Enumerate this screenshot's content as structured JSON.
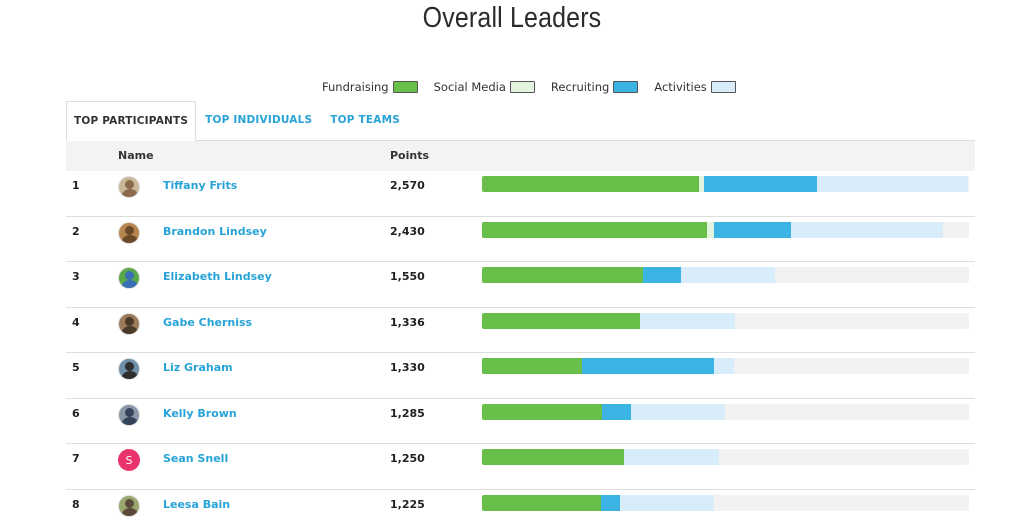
{
  "page": {
    "title": "Overall Leaders"
  },
  "legend": [
    {
      "label": "Fundraising",
      "color": "#6abf4b"
    },
    {
      "label": "Social Media",
      "color": "#e2f3de"
    },
    {
      "label": "Recruiting",
      "color": "#3bb4e3"
    },
    {
      "label": "Activities",
      "color": "#d8ecfa"
    }
  ],
  "tabs": [
    {
      "label": "TOP PARTICIPANTS",
      "active": true
    },
    {
      "label": "TOP INDIVIDUALS",
      "active": false
    },
    {
      "label": "TOP TEAMS",
      "active": false
    }
  ],
  "table": {
    "headers": {
      "name": "Name",
      "points": "Points"
    },
    "rows": [
      {
        "rank": "1",
        "name": "Tiffany Frits",
        "points": "2,570",
        "avatar": "photo",
        "bar": {
          "fundraising": 0.446,
          "social": 0.009,
          "recruiting": 0.232,
          "activities": 0.312
        }
      },
      {
        "rank": "2",
        "name": "Brandon Lindsey",
        "points": "2,430",
        "avatar": "photo",
        "bar": {
          "fundraising": 0.461,
          "social": 0.015,
          "recruiting": 0.158,
          "activities": 0.312
        }
      },
      {
        "rank": "3",
        "name": "Elizabeth Lindsey",
        "points": "1,550",
        "avatar": "photo",
        "bar": {
          "fundraising": 0.331,
          "social": 0.0,
          "recruiting": 0.078,
          "activities": 0.192
        }
      },
      {
        "rank": "4",
        "name": "Gabe Cherniss",
        "points": "1,336",
        "avatar": "photo",
        "bar": {
          "fundraising": 0.325,
          "social": 0.0,
          "recruiting": 0.0,
          "activities": 0.195
        }
      },
      {
        "rank": "5",
        "name": "Liz Graham",
        "points": "1,330",
        "avatar": "photo",
        "bar": {
          "fundraising": 0.205,
          "social": 0.0,
          "recruiting": 0.271,
          "activities": 0.041
        }
      },
      {
        "rank": "6",
        "name": "Kelly Brown",
        "points": "1,285",
        "avatar": "photo",
        "bar": {
          "fundraising": 0.246,
          "social": 0.0,
          "recruiting": 0.06,
          "activities": 0.193
        }
      },
      {
        "rank": "7",
        "name": "Sean Snell",
        "points": "1,250",
        "avatar": "letter",
        "avatar_letter": "S",
        "bar": {
          "fundraising": 0.292,
          "social": 0.0,
          "recruiting": 0.0,
          "activities": 0.195
        }
      },
      {
        "rank": "8",
        "name": "Leesa Bain",
        "points": "1,225",
        "avatar": "photo",
        "bar": {
          "fundraising": 0.244,
          "social": 0.0,
          "recruiting": 0.039,
          "activities": 0.193
        }
      }
    ]
  }
}
